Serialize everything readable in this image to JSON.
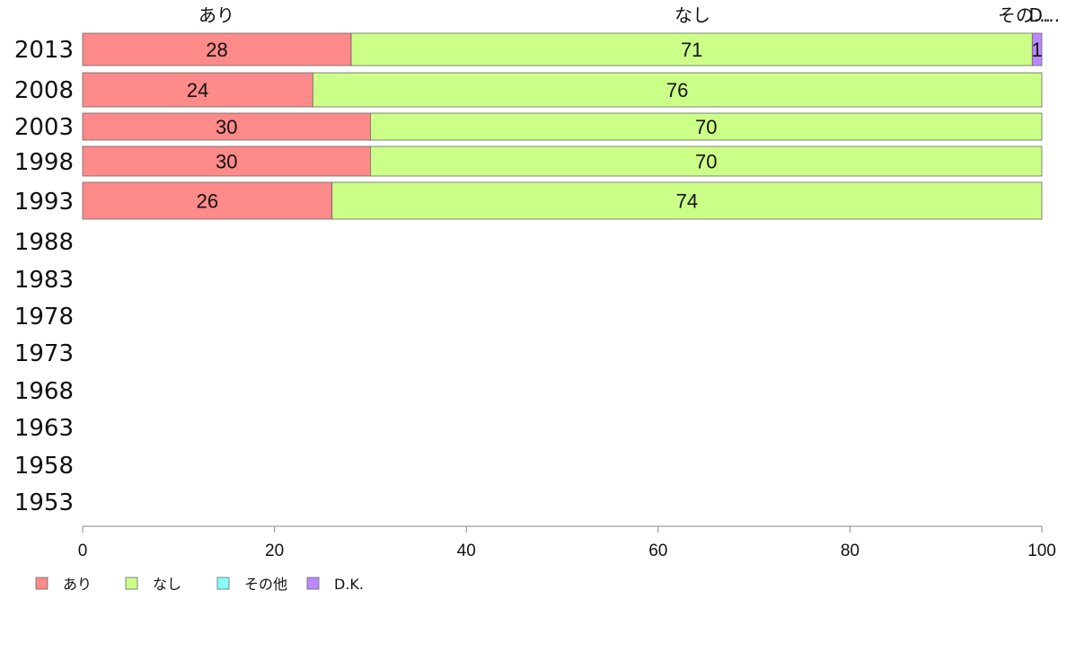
{
  "chart_data": {
    "type": "bar",
    "orientation": "horizontal",
    "stacked": true,
    "categories": [
      "2013",
      "2008",
      "2003",
      "1998",
      "1993",
      "1988",
      "1983",
      "1978",
      "1973",
      "1968",
      "1963",
      "1958",
      "1953"
    ],
    "series": [
      {
        "name": "あり",
        "color": "#ff8a8a",
        "values": [
          28,
          24,
          30,
          30,
          26,
          null,
          null,
          null,
          null,
          null,
          null,
          null,
          null
        ]
      },
      {
        "name": "なし",
        "color": "#ccff88",
        "values": [
          71,
          76,
          70,
          70,
          74,
          null,
          null,
          null,
          null,
          null,
          null,
          null,
          null
        ]
      },
      {
        "name": "その他",
        "color": "#88ffff",
        "values": [
          0,
          0,
          0,
          0,
          0,
          null,
          null,
          null,
          null,
          null,
          null,
          null,
          null
        ]
      },
      {
        "name": "D.K.",
        "color": "#bb88ff",
        "values": [
          1,
          0,
          0,
          0,
          0,
          null,
          null,
          null,
          null,
          null,
          null,
          null,
          null
        ]
      }
    ],
    "top_labels": [
      "あり",
      "なし",
      "その...",
      "D..."
    ],
    "xlim": [
      0,
      100
    ],
    "xticks": [
      0,
      20,
      40,
      60,
      80,
      100
    ],
    "legend_position": "bottom-left",
    "grid": false
  }
}
